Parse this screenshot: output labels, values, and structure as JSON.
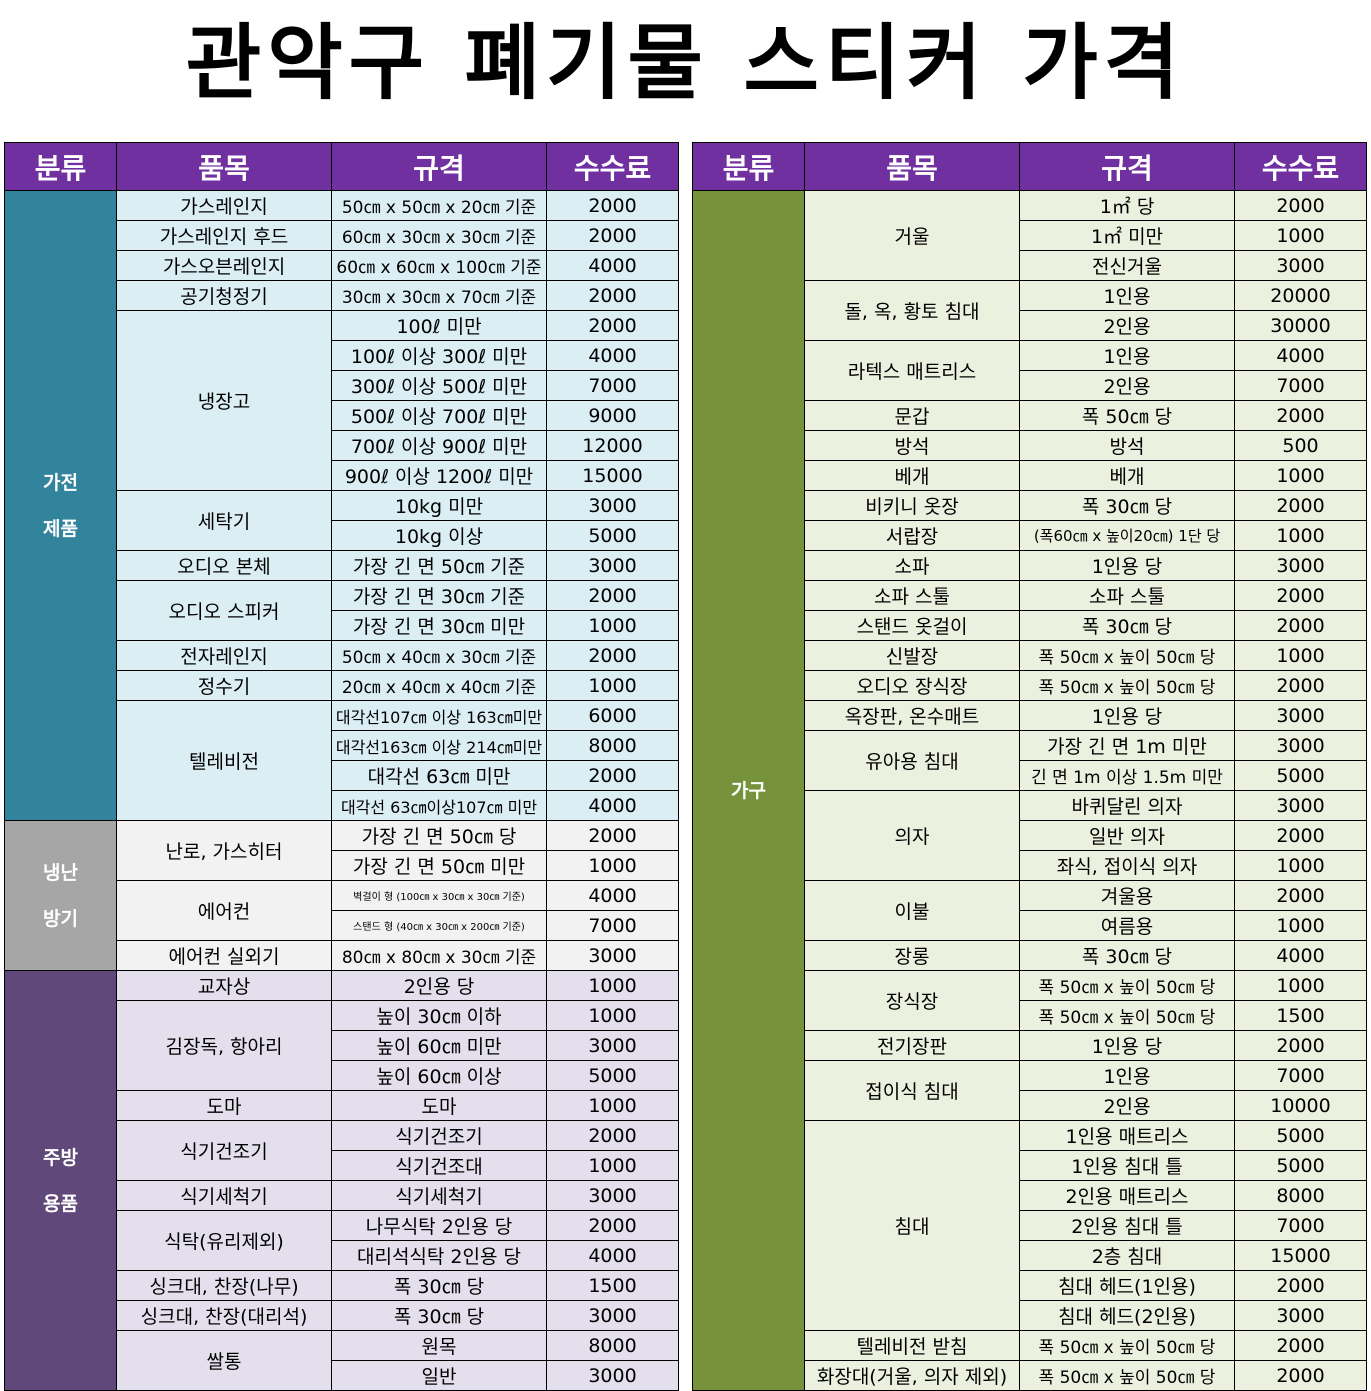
{
  "title": "관악구 폐기물 스티커 가격",
  "headers": [
    "분류",
    "품목",
    "규격",
    "수수료"
  ],
  "colors": {
    "header": "#7030a0",
    "appliance_cat": "#31849b",
    "appliance_row": "#dbeef4",
    "heating_cat": "#a6a6a6",
    "heating_row": "#f2f2f2",
    "kitchen_cat": "#60497a",
    "kitchen_row": "#e4dfec",
    "furniture_cat": "#76933c",
    "furniture_row": "#ebf1de"
  },
  "left": {
    "categories": {
      "appliances": "가전제품",
      "heating": "냉난방기",
      "kitchen": "주방용품"
    },
    "items": [
      {
        "name": "가스레인지",
        "rows": [
          {
            "spec": "50㎝ x 50㎝ x 20㎝ 기준",
            "fee": "2000"
          }
        ]
      },
      {
        "name": "가스레인지 후드",
        "rows": [
          {
            "spec": "60㎝ x 30㎝ x 30㎝ 기준",
            "fee": "2000"
          }
        ]
      },
      {
        "name": "가스오븐레인지",
        "rows": [
          {
            "spec": "60㎝ x 60㎝ x 100㎝ 기준",
            "fee": "4000"
          }
        ]
      },
      {
        "name": "공기청정기",
        "rows": [
          {
            "spec": "30㎝ x 30㎝ x 70㎝ 기준",
            "fee": "2000"
          }
        ]
      },
      {
        "name": "냉장고",
        "rows": [
          {
            "spec": "100ℓ 미만",
            "fee": "2000"
          },
          {
            "spec": "100ℓ 이상 300ℓ 미만",
            "fee": "4000"
          },
          {
            "spec": "300ℓ 이상 500ℓ 미만",
            "fee": "7000"
          },
          {
            "spec": "500ℓ 이상 700ℓ 미만",
            "fee": "9000"
          },
          {
            "spec": "700ℓ 이상 900ℓ 미만",
            "fee": "12000"
          },
          {
            "spec": "900ℓ 이상 1200ℓ 미만",
            "fee": "15000"
          }
        ]
      },
      {
        "name": "세탁기",
        "rows": [
          {
            "spec": "10kg 미만",
            "fee": "3000"
          },
          {
            "spec": "10kg 이상",
            "fee": "5000"
          }
        ]
      },
      {
        "name": "오디오 본체",
        "rows": [
          {
            "spec": "가장 긴 면 50㎝ 기준",
            "fee": "3000"
          }
        ]
      },
      {
        "name": "오디오 스피커",
        "rows": [
          {
            "spec": "가장 긴 면 30㎝ 기준",
            "fee": "2000"
          },
          {
            "spec": "가장 긴 면 30㎝ 미만",
            "fee": "1000"
          }
        ]
      },
      {
        "name": "전자레인지",
        "rows": [
          {
            "spec": "50㎝ x 40㎝ x 30㎝ 기준",
            "fee": "2000"
          }
        ]
      },
      {
        "name": "정수기",
        "rows": [
          {
            "spec": "20㎝ x 40㎝ x 40㎝ 기준",
            "fee": "1000"
          }
        ]
      },
      {
        "name": "텔레비전",
        "rows": [
          {
            "spec": "대각선107㎝ 이상 163㎝미만",
            "fee": "6000"
          },
          {
            "spec": "대각선163㎝ 이상 214㎝미만",
            "fee": "8000"
          },
          {
            "spec": "대각선 63㎝ 미만",
            "fee": "2000"
          },
          {
            "spec": "대각선 63㎝이상107㎝ 미만",
            "fee": "4000"
          }
        ]
      },
      {
        "name": "난로, 가스히터",
        "rows": [
          {
            "spec": "가장 긴 면 50㎝ 당",
            "fee": "2000"
          },
          {
            "spec": "가장 긴 면 50㎝ 미만",
            "fee": "1000"
          }
        ]
      },
      {
        "name": "에어컨",
        "rows": [
          {
            "spec": "벽걸이 형 (100㎝ x 30㎝ x 30㎝ 기준)",
            "fee": "4000"
          },
          {
            "spec": "스탠드 형 (40㎝ x 30㎝ x 200㎝ 기준)",
            "fee": "7000"
          }
        ]
      },
      {
        "name": "에어컨 실외기",
        "rows": [
          {
            "spec": "80㎝ x 80㎝ x 30㎝ 기준",
            "fee": "3000"
          }
        ]
      },
      {
        "name": "교자상",
        "rows": [
          {
            "spec": "2인용 당",
            "fee": "1000"
          }
        ]
      },
      {
        "name": "김장독, 항아리",
        "rows": [
          {
            "spec": "높이 30㎝ 이하",
            "fee": "1000"
          },
          {
            "spec": "높이 60㎝ 미만",
            "fee": "3000"
          },
          {
            "spec": "높이 60㎝ 이상",
            "fee": "5000"
          }
        ]
      },
      {
        "name": "도마",
        "rows": [
          {
            "spec": "도마",
            "fee": "1000"
          }
        ]
      },
      {
        "name": "식기건조기",
        "rows": [
          {
            "spec": "식기건조기",
            "fee": "2000"
          },
          {
            "spec": "식기건조대",
            "fee": "1000"
          }
        ]
      },
      {
        "name": "식기세척기",
        "rows": [
          {
            "spec": "식기세척기",
            "fee": "3000"
          }
        ]
      },
      {
        "name": "식탁(유리제외)",
        "rows": [
          {
            "spec": "나무식탁 2인용 당",
            "fee": "2000"
          },
          {
            "spec": "대리석식탁 2인용 당",
            "fee": "4000"
          }
        ]
      },
      {
        "name": "싱크대, 찬장(나무)",
        "rows": [
          {
            "spec": "폭 30㎝ 당",
            "fee": "1500"
          }
        ]
      },
      {
        "name": "싱크대, 찬장(대리석)",
        "rows": [
          {
            "spec": "폭 30㎝ 당",
            "fee": "3000"
          }
        ]
      },
      {
        "name": "쌀통",
        "rows": [
          {
            "spec": "원목",
            "fee": "8000"
          },
          {
            "spec": "일반",
            "fee": "3000"
          }
        ]
      }
    ]
  },
  "right": {
    "category": "가구",
    "items": [
      {
        "name": "거울",
        "rows": [
          {
            "spec": "1㎡ 당",
            "fee": "2000"
          },
          {
            "spec": "1㎡ 미만",
            "fee": "1000"
          },
          {
            "spec": "전신거울",
            "fee": "3000"
          }
        ]
      },
      {
        "name": "돌, 옥, 황토 침대",
        "rows": [
          {
            "spec": "1인용",
            "fee": "20000"
          },
          {
            "spec": "2인용",
            "fee": "30000"
          }
        ]
      },
      {
        "name": "라텍스 매트리스",
        "rows": [
          {
            "spec": "1인용",
            "fee": "4000"
          },
          {
            "spec": "2인용",
            "fee": "7000"
          }
        ]
      },
      {
        "name": "문갑",
        "rows": [
          {
            "spec": "폭 50㎝ 당",
            "fee": "2000"
          }
        ]
      },
      {
        "name": "방석",
        "rows": [
          {
            "spec": "방석",
            "fee": "500"
          }
        ]
      },
      {
        "name": "베개",
        "rows": [
          {
            "spec": "베개",
            "fee": "1000"
          }
        ]
      },
      {
        "name": "비키니 옷장",
        "rows": [
          {
            "spec": "폭 30㎝ 당",
            "fee": "2000"
          }
        ]
      },
      {
        "name": "서랍장",
        "rows": [
          {
            "spec": "(폭60㎝ x 높이20㎝) 1단 당",
            "fee": "1000"
          }
        ]
      },
      {
        "name": "소파",
        "rows": [
          {
            "spec": "1인용 당",
            "fee": "3000"
          }
        ]
      },
      {
        "name": "소파 스툴",
        "rows": [
          {
            "spec": "소파 스툴",
            "fee": "2000"
          }
        ]
      },
      {
        "name": "스탠드 옷걸이",
        "rows": [
          {
            "spec": "폭 30㎝ 당",
            "fee": "2000"
          }
        ]
      },
      {
        "name": "신발장",
        "rows": [
          {
            "spec": "폭 50㎝ x 높이 50㎝ 당",
            "fee": "1000"
          }
        ]
      },
      {
        "name": "오디오 장식장",
        "rows": [
          {
            "spec": "폭 50㎝ x 높이 50㎝ 당",
            "fee": "2000"
          }
        ]
      },
      {
        "name": "옥장판, 온수매트",
        "rows": [
          {
            "spec": "1인용 당",
            "fee": "3000"
          }
        ]
      },
      {
        "name": "유아용 침대",
        "rows": [
          {
            "spec": "가장 긴 면 1m 미만",
            "fee": "3000"
          },
          {
            "spec": "긴 면 1m 이상 1.5m 미만",
            "fee": "5000"
          }
        ]
      },
      {
        "name": "의자",
        "rows": [
          {
            "spec": "바퀴달린 의자",
            "fee": "3000"
          },
          {
            "spec": "일반 의자",
            "fee": "2000"
          },
          {
            "spec": "좌식, 접이식 의자",
            "fee": "1000"
          }
        ]
      },
      {
        "name": "이불",
        "rows": [
          {
            "spec": "겨울용",
            "fee": "2000"
          },
          {
            "spec": "여름용",
            "fee": "1000"
          }
        ]
      },
      {
        "name": "장롱",
        "rows": [
          {
            "spec": "폭 30㎝ 당",
            "fee": "4000"
          }
        ]
      },
      {
        "name": "장식장",
        "rows": [
          {
            "spec": "폭 50㎝ x 높이 50㎝ 당",
            "fee": "1000"
          },
          {
            "spec": "폭 50㎝ x 높이 50㎝ 당",
            "fee": "1500"
          }
        ]
      },
      {
        "name": "전기장판",
        "rows": [
          {
            "spec": "1인용 당",
            "fee": "2000"
          }
        ]
      },
      {
        "name": "접이식 침대",
        "rows": [
          {
            "spec": "1인용",
            "fee": "7000"
          },
          {
            "spec": "2인용",
            "fee": "10000"
          }
        ]
      },
      {
        "name": "침대",
        "rows": [
          {
            "spec": "1인용 매트리스",
            "fee": "5000"
          },
          {
            "spec": "1인용 침대 틀",
            "fee": "5000"
          },
          {
            "spec": "2인용 매트리스",
            "fee": "8000"
          },
          {
            "spec": "2인용 침대 틀",
            "fee": "7000"
          },
          {
            "spec": "2층 침대",
            "fee": "15000"
          },
          {
            "spec": "침대 헤드(1인용)",
            "fee": "2000"
          },
          {
            "spec": "침대 헤드(2인용)",
            "fee": "3000"
          }
        ]
      },
      {
        "name": "텔레비전 받침",
        "rows": [
          {
            "spec": "폭 50㎝ x 높이 50㎝ 당",
            "fee": "2000"
          }
        ]
      },
      {
        "name": "화장대(거울, 의자 제외)",
        "rows": [
          {
            "spec": "폭 50㎝ x 높이 50㎝ 당",
            "fee": "2000"
          }
        ]
      }
    ]
  }
}
